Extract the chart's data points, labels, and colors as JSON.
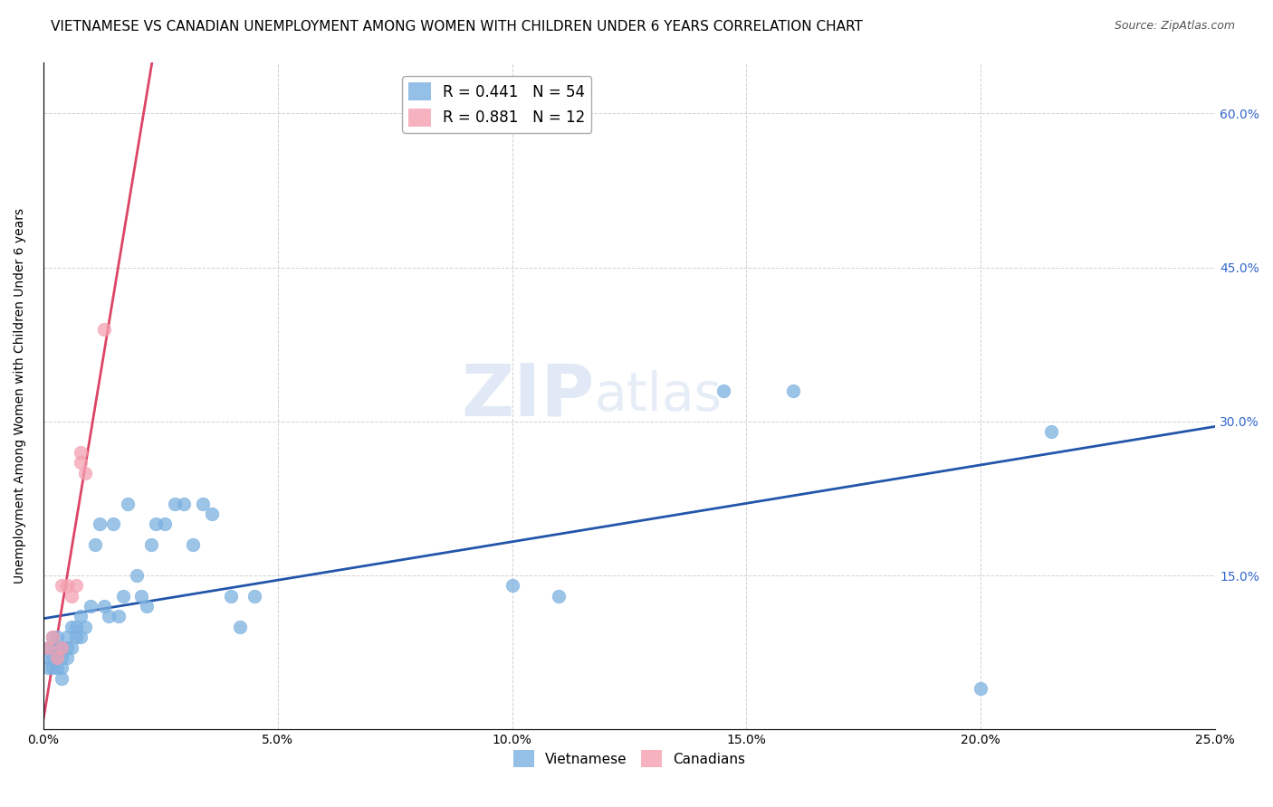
{
  "title": "VIETNAMESE VS CANADIAN UNEMPLOYMENT AMONG WOMEN WITH CHILDREN UNDER 6 YEARS CORRELATION CHART",
  "source": "Source: ZipAtlas.com",
  "ylabel": "Unemployment Among Women with Children Under 6 years",
  "watermark_zip": "ZIP",
  "watermark_atlas": "atlas",
  "xlim": [
    0.0,
    0.25
  ],
  "ylim": [
    0.0,
    0.65
  ],
  "xtick_vals": [
    0.0,
    0.05,
    0.1,
    0.15,
    0.2,
    0.25
  ],
  "xtick_labels": [
    "0.0%",
    "5.0%",
    "10.0%",
    "15.0%",
    "20.0%",
    "25.0%"
  ],
  "ytick_vals": [
    0.0,
    0.15,
    0.3,
    0.45,
    0.6
  ],
  "ytick_right_labels": [
    "60.0%",
    "45.0%",
    "30.0%",
    "15.0%"
  ],
  "ytick_right_vals": [
    0.6,
    0.45,
    0.3,
    0.15
  ],
  "legend_top": [
    {
      "label": "R = 0.441   N = 54",
      "color": "#7ab0e0"
    },
    {
      "label": "R = 0.881   N = 12",
      "color": "#f4a0b0"
    }
  ],
  "legend_bottom_labels": [
    "Vietnamese",
    "Canadians"
  ],
  "legend_bottom_colors": [
    "#7ab0e0",
    "#f4a0b0"
  ],
  "viet_color": "#7ab0e0",
  "can_color": "#f4a0b0",
  "viet_line_color": "#2255aa",
  "can_line_color": "#dd4466",
  "grid_color": "#cccccc",
  "right_axis_color": "#3366cc",
  "title_fontsize": 11,
  "source_fontsize": 9,
  "viet_x": [
    0.001,
    0.001,
    0.001,
    0.002,
    0.002,
    0.002,
    0.002,
    0.003,
    0.003,
    0.003,
    0.003,
    0.004,
    0.004,
    0.004,
    0.004,
    0.005,
    0.005,
    0.005,
    0.006,
    0.006,
    0.007,
    0.007,
    0.008,
    0.008,
    0.009,
    0.01,
    0.011,
    0.012,
    0.013,
    0.014,
    0.015,
    0.016,
    0.017,
    0.018,
    0.02,
    0.021,
    0.022,
    0.023,
    0.024,
    0.026,
    0.028,
    0.03,
    0.032,
    0.034,
    0.036,
    0.04,
    0.042,
    0.045,
    0.1,
    0.11,
    0.145,
    0.16,
    0.2,
    0.215
  ],
  "viet_y": [
    0.08,
    0.07,
    0.06,
    0.09,
    0.08,
    0.07,
    0.06,
    0.09,
    0.08,
    0.07,
    0.06,
    0.08,
    0.07,
    0.06,
    0.05,
    0.09,
    0.08,
    0.07,
    0.1,
    0.08,
    0.1,
    0.09,
    0.11,
    0.09,
    0.1,
    0.12,
    0.18,
    0.2,
    0.12,
    0.11,
    0.2,
    0.11,
    0.13,
    0.22,
    0.15,
    0.13,
    0.12,
    0.18,
    0.2,
    0.2,
    0.22,
    0.22,
    0.18,
    0.22,
    0.21,
    0.13,
    0.1,
    0.13,
    0.14,
    0.13,
    0.33,
    0.33,
    0.04,
    0.29
  ],
  "can_x": [
    0.001,
    0.002,
    0.003,
    0.004,
    0.004,
    0.005,
    0.006,
    0.007,
    0.008,
    0.008,
    0.009,
    0.013
  ],
  "can_y": [
    0.08,
    0.09,
    0.07,
    0.08,
    0.14,
    0.14,
    0.13,
    0.14,
    0.27,
    0.26,
    0.25,
    0.39
  ]
}
